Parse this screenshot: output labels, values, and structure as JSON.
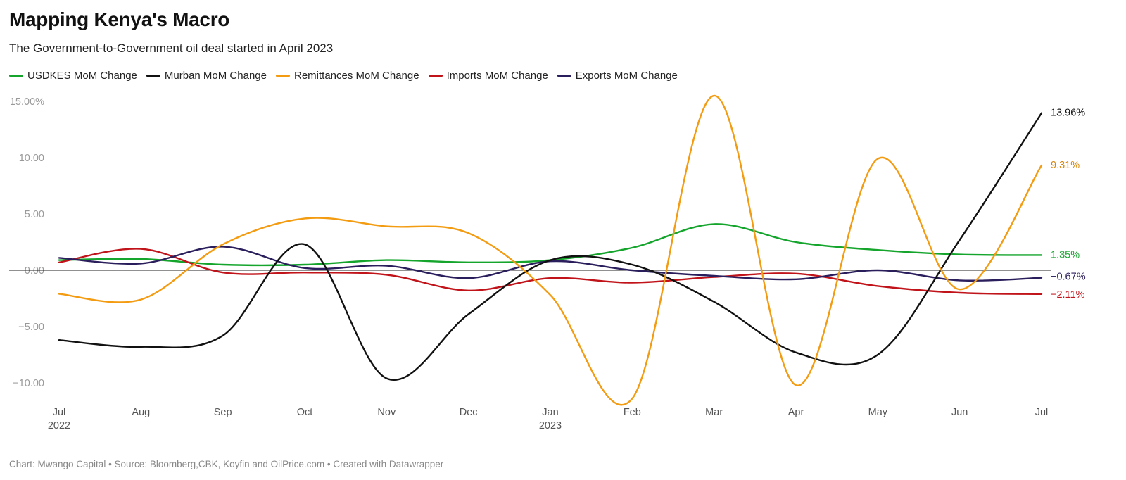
{
  "header": {
    "title": "Mapping Kenya's Macro",
    "subtitle": "The Government-to-Government oil deal started in April 2023"
  },
  "footer": {
    "credit": "Chart: Mwango Capital • Source: Bloomberg,CBK, Koyfin and OilPrice.com • Created with Datawrapper"
  },
  "chart_data": {
    "type": "line",
    "title": "Mapping Kenya's Macro",
    "subtitle": "The Government-to-Government oil deal started in April 2023",
    "xlabel": "",
    "ylabel": "",
    "ylim": [
      -12,
      15.5
    ],
    "grid": false,
    "legend_placement": "top-left",
    "x": [
      "2022-07",
      "2022-08",
      "2022-09",
      "2022-10",
      "2022-11",
      "2022-12",
      "2023-01",
      "2023-02",
      "2023-03",
      "2023-04",
      "2023-05",
      "2023-06",
      "2023-07"
    ],
    "x_tick_labels": [
      {
        "label": "Jul",
        "sub": "2022"
      },
      {
        "label": "Aug",
        "sub": ""
      },
      {
        "label": "Sep",
        "sub": ""
      },
      {
        "label": "Oct",
        "sub": ""
      },
      {
        "label": "Nov",
        "sub": ""
      },
      {
        "label": "Dec",
        "sub": ""
      },
      {
        "label": "Jan",
        "sub": "2023"
      },
      {
        "label": "Feb",
        "sub": ""
      },
      {
        "label": "Mar",
        "sub": ""
      },
      {
        "label": "Apr",
        "sub": ""
      },
      {
        "label": "May",
        "sub": ""
      },
      {
        "label": "Jun",
        "sub": ""
      },
      {
        "label": "Jul",
        "sub": ""
      }
    ],
    "y_ticks": [
      {
        "value": 15,
        "label": "15.00%"
      },
      {
        "value": 10,
        "label": "10.00"
      },
      {
        "value": 5,
        "label": "5.00"
      },
      {
        "value": 0,
        "label": "0.00"
      },
      {
        "value": -5,
        "label": "−5.00"
      },
      {
        "value": -10,
        "label": "−10.00"
      }
    ],
    "series": [
      {
        "name": "USDKES MoM Change",
        "color": "#15a52d",
        "end_label": "1.35%",
        "label_color": "#15a52d",
        "values": [
          0.9,
          1.0,
          0.5,
          0.5,
          0.9,
          0.7,
          0.9,
          2.0,
          4.1,
          2.5,
          1.8,
          1.4,
          1.35
        ]
      },
      {
        "name": "Murban MoM Change",
        "color": "#111111",
        "end_label": "13.96%",
        "label_color": "#111111",
        "values": [
          -6.2,
          -6.8,
          -5.8,
          2.3,
          -9.6,
          -3.9,
          0.9,
          0.5,
          -2.8,
          -7.3,
          -7.5,
          2.7,
          13.96
        ]
      },
      {
        "name": "Remittances MoM Change",
        "color": "#f39c12",
        "end_label": "9.31%",
        "label_color": "#d7850a",
        "values": [
          -2.1,
          -2.6,
          2.3,
          4.6,
          3.9,
          3.3,
          -2.2,
          -11.4,
          15.5,
          -10.2,
          9.9,
          -1.7,
          9.31
        ]
      },
      {
        "name": "Imports MoM Change",
        "color": "#c0141a",
        "end_label": "−2.11%",
        "label_color": "#c0141a",
        "values": [
          0.7,
          1.9,
          -0.2,
          -0.2,
          -0.4,
          -1.8,
          -0.7,
          -1.1,
          -0.6,
          -0.3,
          -1.4,
          -2.0,
          -2.11
        ]
      },
      {
        "name": "Exports MoM Change",
        "color": "#2b1e5c",
        "end_label": "−0.67%",
        "label_color": "#2b1e5c",
        "values": [
          1.1,
          0.6,
          2.1,
          0.2,
          0.4,
          -0.7,
          0.8,
          0.0,
          -0.5,
          -0.8,
          0.0,
          -0.9,
          -0.67
        ]
      }
    ]
  }
}
